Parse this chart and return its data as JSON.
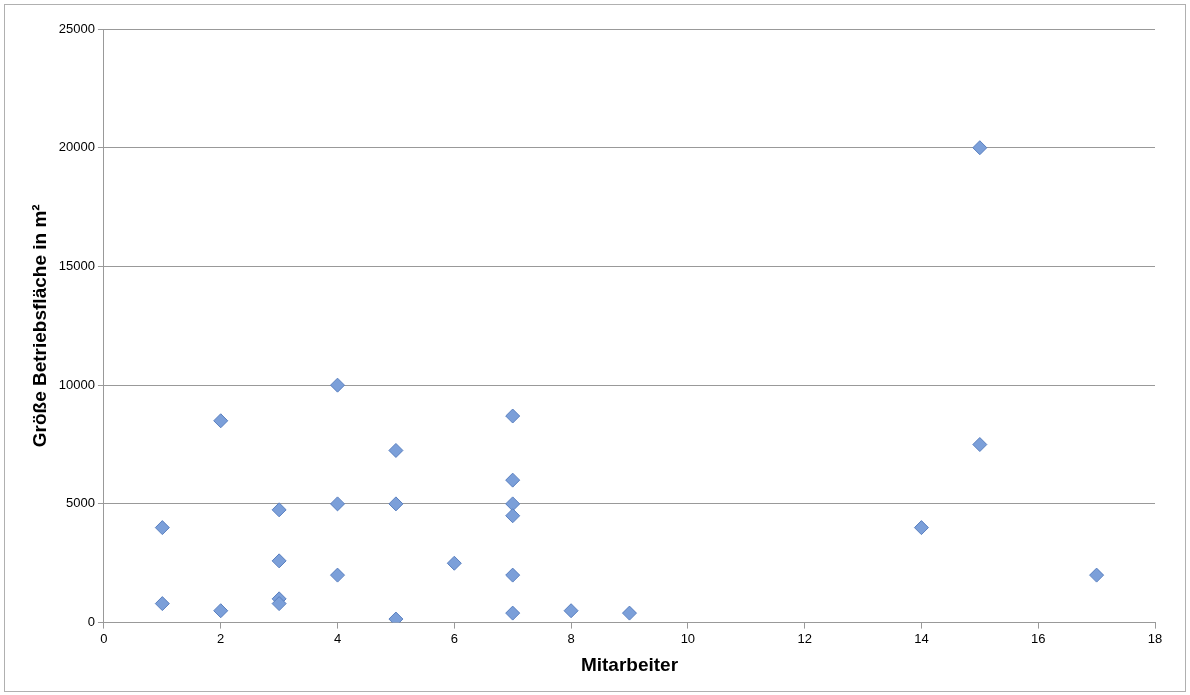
{
  "chart_data": {
    "type": "scatter",
    "xlabel": "Mitarbeiter",
    "ylabel": "Größe Betriebsfläche in m²",
    "xlim": [
      0,
      18
    ],
    "xticks": [
      0,
      2,
      4,
      6,
      8,
      10,
      12,
      14,
      16,
      18
    ],
    "ylim": [
      0,
      25000
    ],
    "yticks": [
      0,
      5000,
      10000,
      15000,
      20000,
      25000
    ],
    "grid": "y",
    "legend": false,
    "marker": "diamond",
    "series": [
      {
        "color": "#7b9fd9",
        "x": [
          1,
          1,
          2,
          2,
          3,
          3,
          3,
          3,
          4,
          4,
          4,
          5,
          5,
          5,
          6,
          7,
          7,
          7,
          7,
          7,
          7,
          8,
          9,
          14,
          15,
          15,
          17
        ],
        "values": [
          4000,
          800,
          8500,
          500,
          4750,
          2600,
          1000,
          800,
          10000,
          5000,
          2000,
          7250,
          5000,
          150,
          2500,
          8700,
          6000,
          5000,
          4500,
          2000,
          400,
          500,
          400,
          4000,
          20000,
          7500,
          2000
        ]
      }
    ]
  }
}
